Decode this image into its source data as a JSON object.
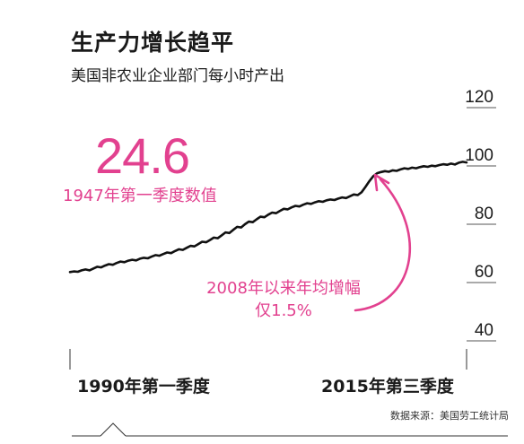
{
  "header": {
    "title": "生产力增长趋平",
    "subtitle": "美国非农业企业部门每小时产出"
  },
  "callout": {
    "value": "24.6",
    "caption": "1947年第一季度数值"
  },
  "annotation": {
    "line1": "2008年以来年均增幅",
    "line2": "仅1.5%"
  },
  "footer": {
    "source": "数据来源：美国劳工统计局"
  },
  "colors": {
    "accent": "#e2418f",
    "line": "#111111"
  },
  "chart_data": {
    "type": "line",
    "title": "生产力增长趋平",
    "subtitle": "美国非农业企业部门每小时产出",
    "x_start_label": "1990年第一季度",
    "x_end_label": "2015年第三季度",
    "ylim": [
      40,
      120
    ],
    "yticks": [
      40,
      60,
      80,
      100,
      120
    ],
    "ytick_labels": [
      "40",
      "60",
      "80",
      "100",
      "120"
    ],
    "grid": true,
    "series": [
      {
        "values": [
          63.6,
          63.8,
          63.7,
          64.2,
          64.5,
          64.2,
          64.8,
          65.4,
          65.2,
          65.8,
          66.3,
          66.1,
          66.7,
          67.2,
          67.0,
          67.5,
          67.8,
          67.6,
          68.2,
          68.5,
          68.3,
          68.9,
          69.4,
          69.2,
          69.8,
          70.3,
          70.1,
          70.8,
          71.4,
          71.2,
          71.9,
          72.6,
          72.4,
          73.2,
          74.0,
          73.8,
          74.6,
          75.4,
          75.2,
          76.2,
          77.2,
          77.0,
          78.1,
          79.1,
          78.9,
          80.0,
          80.9,
          80.7,
          81.7,
          82.6,
          82.4,
          83.3,
          84.0,
          83.8,
          84.6,
          85.3,
          85.1,
          85.8,
          86.3,
          86.1,
          86.7,
          87.2,
          87.0,
          87.5,
          87.9,
          87.7,
          88.2,
          88.5,
          88.3,
          88.8,
          89.2,
          89.0,
          89.6,
          90.2,
          90.0,
          91.0,
          92.8,
          94.8,
          96.5,
          97.5,
          97.9,
          98.2,
          98.0,
          98.5,
          98.3,
          98.8,
          99.2,
          99.0,
          99.4,
          99.2,
          99.6,
          99.9,
          99.7,
          100.1,
          99.9,
          100.3,
          100.6,
          100.4,
          100.8,
          100.5,
          101.1,
          101.4,
          101.2
        ]
      }
    ],
    "annotations": [
      "24.6",
      "1947年第一季度数值",
      "2008年以来年均增幅",
      "仅1.5%"
    ]
  }
}
